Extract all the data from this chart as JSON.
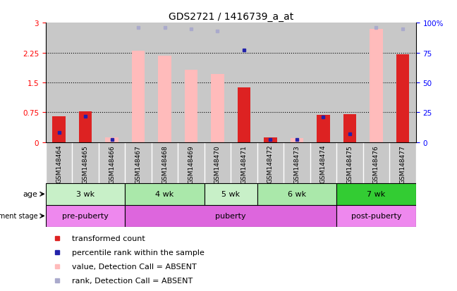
{
  "title": "GDS2721 / 1416739_a_at",
  "samples": [
    "GSM148464",
    "GSM148465",
    "GSM148466",
    "GSM148467",
    "GSM148468",
    "GSM148469",
    "GSM148470",
    "GSM148471",
    "GSM148472",
    "GSM148473",
    "GSM148474",
    "GSM148475",
    "GSM148476",
    "GSM148477"
  ],
  "transformed_count": [
    0.65,
    0.78,
    0.12,
    2.3,
    2.18,
    1.82,
    1.72,
    1.38,
    0.13,
    0.1,
    0.68,
    0.7,
    2.85,
    2.2
  ],
  "percentile_rank": [
    8.0,
    22.0,
    2.0,
    96.0,
    96.0,
    95.0,
    93.0,
    77.0,
    2.0,
    2.0,
    21.0,
    7.0,
    96.0,
    95.0
  ],
  "detection_call_absent": [
    false,
    false,
    true,
    true,
    true,
    true,
    true,
    false,
    false,
    true,
    false,
    false,
    true,
    false
  ],
  "rank_absent": [
    false,
    false,
    false,
    true,
    true,
    true,
    true,
    false,
    false,
    false,
    false,
    false,
    true,
    true
  ],
  "ylim_left": [
    0,
    3
  ],
  "ylim_right": [
    0,
    100
  ],
  "yticks_left": [
    0,
    0.75,
    1.5,
    2.25,
    3
  ],
  "yticks_right": [
    0,
    25,
    50,
    75,
    100
  ],
  "ytick_labels_left": [
    "0",
    "0.75",
    "1.5",
    "2.25",
    "3"
  ],
  "ytick_labels_right": [
    "0",
    "25",
    "50",
    "75",
    "100%"
  ],
  "age_groups": [
    {
      "label": "3 wk",
      "start": 0,
      "end": 3,
      "color": "#c8f0c8"
    },
    {
      "label": "4 wk",
      "start": 3,
      "end": 6,
      "color": "#aae8aa"
    },
    {
      "label": "5 wk",
      "start": 6,
      "end": 8,
      "color": "#c8f0c8"
    },
    {
      "label": "6 wk",
      "start": 8,
      "end": 11,
      "color": "#aae8aa"
    },
    {
      "label": "7 wk",
      "start": 11,
      "end": 14,
      "color": "#33cc33"
    }
  ],
  "dev_stage_groups": [
    {
      "label": "pre-puberty",
      "start": 0,
      "end": 3,
      "color": "#ee88ee"
    },
    {
      "label": "puberty",
      "start": 3,
      "end": 11,
      "color": "#dd66dd"
    },
    {
      "label": "post-puberty",
      "start": 11,
      "end": 14,
      "color": "#ee88ee"
    }
  ],
  "bar_width": 0.5,
  "absent_bar_color": "#ffbbbb",
  "present_bar_color": "#dd2222",
  "absent_rank_color": "#aaaacc",
  "present_rank_color": "#2222aa",
  "col_bg_color": "#c8c8c8",
  "dotted_line_color": "#000000"
}
